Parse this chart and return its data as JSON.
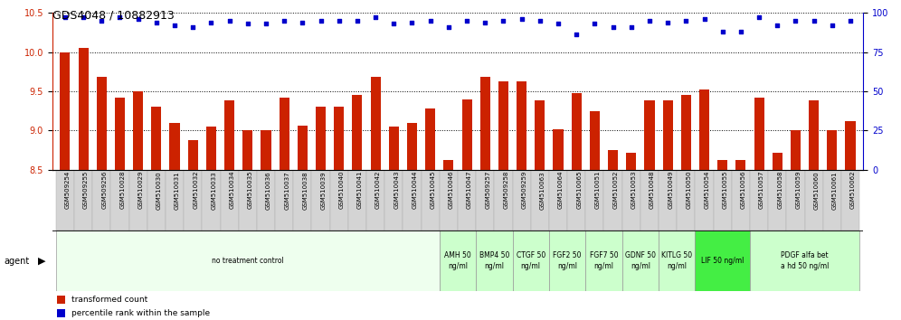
{
  "title": "GDS4048 / 10882913",
  "samples": [
    "GSM509254",
    "GSM509255",
    "GSM509256",
    "GSM510028",
    "GSM510029",
    "GSM510030",
    "GSM510031",
    "GSM510032",
    "GSM510033",
    "GSM510034",
    "GSM510035",
    "GSM510036",
    "GSM510037",
    "GSM510038",
    "GSM510039",
    "GSM510040",
    "GSM510041",
    "GSM510042",
    "GSM510043",
    "GSM510044",
    "GSM510045",
    "GSM510046",
    "GSM510047",
    "GSM509257",
    "GSM509258",
    "GSM509259",
    "GSM510063",
    "GSM510064",
    "GSM510065",
    "GSM510051",
    "GSM510052",
    "GSM510053",
    "GSM510048",
    "GSM510049",
    "GSM510050",
    "GSM510054",
    "GSM510055",
    "GSM510056",
    "GSM510057",
    "GSM510058",
    "GSM510059",
    "GSM510060",
    "GSM510061",
    "GSM510062"
  ],
  "bar_values": [
    10.0,
    10.05,
    9.68,
    9.42,
    9.5,
    9.3,
    9.1,
    8.88,
    9.05,
    9.38,
    9.0,
    9.0,
    9.42,
    9.06,
    9.3,
    9.3,
    9.45,
    9.68,
    9.05,
    9.1,
    9.28,
    8.62,
    9.4,
    9.68,
    9.62,
    9.62,
    9.38,
    9.02,
    9.48,
    9.25,
    8.75,
    8.72,
    9.38,
    9.38,
    9.45,
    9.52,
    8.62,
    8.62,
    9.42,
    8.72,
    9.0,
    9.38,
    9.0,
    9.12
  ],
  "percentile_values": [
    97,
    97,
    95,
    97,
    96,
    94,
    92,
    91,
    94,
    95,
    93,
    93,
    95,
    94,
    95,
    95,
    95,
    97,
    93,
    94,
    95,
    91,
    95,
    94,
    95,
    96,
    95,
    93,
    86,
    93,
    91,
    91,
    95,
    94,
    95,
    96,
    88,
    88,
    97,
    92,
    95,
    95,
    92,
    95
  ],
  "ymin": 8.5,
  "ymax": 10.5,
  "ylim_right": [
    0,
    100
  ],
  "yticks_left": [
    8.5,
    9.0,
    9.5,
    10.0,
    10.5
  ],
  "yticks_right": [
    0,
    25,
    50,
    75,
    100
  ],
  "bar_color": "#cc2200",
  "dot_color": "#0000cc",
  "agent_groups": [
    {
      "label": "no treatment control",
      "start": 0,
      "end": 21,
      "color": "#eeffee"
    },
    {
      "label": "AMH 50\nng/ml",
      "start": 21,
      "end": 23,
      "color": "#ccffcc"
    },
    {
      "label": "BMP4 50\nng/ml",
      "start": 23,
      "end": 25,
      "color": "#ccffcc"
    },
    {
      "label": "CTGF 50\nng/ml",
      "start": 25,
      "end": 27,
      "color": "#ccffcc"
    },
    {
      "label": "FGF2 50\nng/ml",
      "start": 27,
      "end": 29,
      "color": "#ccffcc"
    },
    {
      "label": "FGF7 50\nng/ml",
      "start": 29,
      "end": 31,
      "color": "#ccffcc"
    },
    {
      "label": "GDNF 50\nng/ml",
      "start": 31,
      "end": 33,
      "color": "#ccffcc"
    },
    {
      "label": "KITLG 50\nng/ml",
      "start": 33,
      "end": 35,
      "color": "#ccffcc"
    },
    {
      "label": "LIF 50 ng/ml",
      "start": 35,
      "end": 38,
      "color": "#44ee44"
    },
    {
      "label": "PDGF alfa bet\na hd 50 ng/ml",
      "start": 38,
      "end": 44,
      "color": "#ccffcc"
    }
  ],
  "legend_items": [
    {
      "label": "transformed count",
      "color": "#cc2200"
    },
    {
      "label": "percentile rank within the sample",
      "color": "#0000cc"
    }
  ]
}
